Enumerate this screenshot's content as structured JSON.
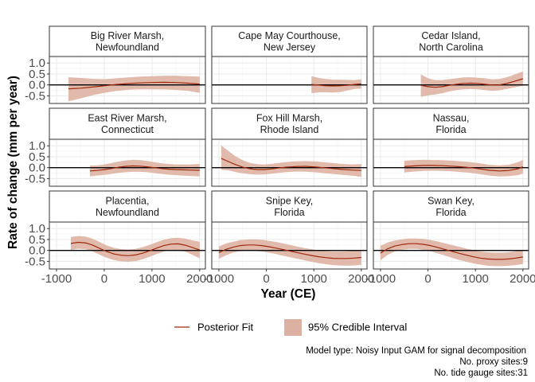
{
  "chart_data": {
    "type": "line",
    "xlabel": "Year (CE)",
    "ylabel": "Rate of change (mm per year)",
    "xlim": [
      -1150,
      2120
    ],
    "ylim": [
      -0.85,
      1.3
    ],
    "x_ticks": [
      -1000,
      0,
      1000,
      2000
    ],
    "x_tick_labels": [
      "-1000",
      "0",
      "1000",
      "2000"
    ],
    "y_ticks": [
      1.0,
      0.5,
      0.0,
      -0.5
    ],
    "y_tick_labels": [
      "1.0",
      "0.5",
      "0.0",
      "-0.5"
    ],
    "grid": true,
    "zero_line": true,
    "colors": {
      "fit": "#A0290A",
      "ci": "#DDB1A1",
      "strip_bg": "#FFFFFF",
      "border": "#333333",
      "grid_major": "#EBEBEB",
      "grid_minor": "#F5F5F5"
    },
    "legend": {
      "position": "bottom",
      "fit_label": "Posterior Fit",
      "ci_label": "95% Credible Interval"
    },
    "caption": [
      "Model type: Noisy Input GAM for signal decomposition",
      "No. proxy sites:9",
      "No. tide gauge sites:31"
    ],
    "panels": [
      {
        "title": [
          "Big River Marsh,",
          "Newfoundland"
        ],
        "x": [
          -750,
          -500,
          -250,
          0,
          250,
          500,
          750,
          1000,
          1250,
          1500,
          1750,
          2000
        ],
        "fit": [
          -0.18,
          -0.15,
          -0.1,
          -0.04,
          0.02,
          0.06,
          0.09,
          0.11,
          0.12,
          0.11,
          0.08,
          0.04
        ],
        "lower": [
          -0.75,
          -0.62,
          -0.48,
          -0.36,
          -0.28,
          -0.22,
          -0.2,
          -0.2,
          -0.21,
          -0.23,
          -0.27,
          -0.36
        ],
        "upper": [
          0.35,
          0.32,
          0.28,
          0.26,
          0.3,
          0.34,
          0.38,
          0.4,
          0.42,
          0.42,
          0.4,
          0.38
        ]
      },
      {
        "title": [
          "Cape May Courthouse,",
          "New Jersey"
        ],
        "x": [
          950,
          1100,
          1250,
          1400,
          1550,
          1700,
          1850,
          2000
        ],
        "fit": [
          0.02,
          -0.01,
          -0.04,
          -0.05,
          -0.04,
          -0.02,
          0.02,
          0.05
        ],
        "lower": [
          -0.38,
          -0.34,
          -0.34,
          -0.35,
          -0.33,
          -0.26,
          -0.19,
          -0.17
        ],
        "upper": [
          0.4,
          0.32,
          0.27,
          0.24,
          0.24,
          0.23,
          0.22,
          0.25
        ]
      },
      {
        "title": [
          "Cedar Island,",
          "North Carolina"
        ],
        "x": [
          -150,
          0,
          150,
          300,
          450,
          600,
          750,
          900,
          1050,
          1200,
          1350,
          1500,
          1650,
          1800,
          2000
        ],
        "fit": [
          -0.02,
          -0.08,
          -0.11,
          -0.08,
          -0.02,
          0.03,
          0.07,
          0.08,
          0.07,
          0.03,
          -0.01,
          0.0,
          0.06,
          0.15,
          0.28
        ],
        "lower": [
          -0.55,
          -0.48,
          -0.44,
          -0.38,
          -0.3,
          -0.24,
          -0.2,
          -0.19,
          -0.2,
          -0.24,
          -0.27,
          -0.25,
          -0.19,
          -0.12,
          -0.04
        ],
        "upper": [
          0.48,
          0.3,
          0.22,
          0.22,
          0.26,
          0.3,
          0.34,
          0.35,
          0.33,
          0.3,
          0.25,
          0.27,
          0.34,
          0.46,
          0.62
        ]
      },
      {
        "title": [
          "East River Marsh,",
          "Connecticut"
        ],
        "x": [
          -300,
          -150,
          0,
          150,
          300,
          450,
          600,
          750,
          900,
          1050,
          1200,
          1350,
          1500,
          1650,
          1800,
          2000
        ],
        "fit": [
          -0.15,
          -0.13,
          -0.09,
          -0.04,
          0.02,
          0.06,
          0.08,
          0.07,
          0.04,
          0.0,
          -0.04,
          -0.07,
          -0.09,
          -0.1,
          -0.11,
          -0.12
        ],
        "lower": [
          -0.4,
          -0.36,
          -0.33,
          -0.29,
          -0.24,
          -0.21,
          -0.19,
          -0.19,
          -0.21,
          -0.25,
          -0.29,
          -0.32,
          -0.34,
          -0.36,
          -0.38,
          -0.4
        ],
        "upper": [
          0.1,
          0.1,
          0.15,
          0.21,
          0.28,
          0.33,
          0.36,
          0.35,
          0.31,
          0.25,
          0.2,
          0.17,
          0.15,
          0.15,
          0.15,
          0.17
        ]
      },
      {
        "title": [
          "Fox Hill Marsh,",
          "Rhode Island"
        ],
        "x": [
          -950,
          -800,
          -650,
          -500,
          -350,
          -200,
          -50,
          100,
          250,
          400,
          600,
          800,
          1000,
          1200,
          1400,
          1600,
          1800,
          2000
        ],
        "fit": [
          0.42,
          0.28,
          0.14,
          0.03,
          -0.05,
          -0.09,
          -0.09,
          -0.06,
          -0.02,
          0.02,
          0.05,
          0.06,
          0.04,
          0.0,
          -0.04,
          -0.08,
          -0.11,
          -0.13
        ],
        "lower": [
          -0.1,
          -0.12,
          -0.2,
          -0.26,
          -0.3,
          -0.32,
          -0.31,
          -0.28,
          -0.24,
          -0.21,
          -0.18,
          -0.18,
          -0.21,
          -0.25,
          -0.29,
          -0.33,
          -0.37,
          -0.42
        ],
        "upper": [
          1.02,
          0.76,
          0.52,
          0.34,
          0.22,
          0.16,
          0.14,
          0.17,
          0.21,
          0.25,
          0.29,
          0.3,
          0.29,
          0.25,
          0.21,
          0.17,
          0.15,
          0.16
        ]
      },
      {
        "title": [
          "Nassau,",
          "Florida"
        ],
        "x": [
          -500,
          -300,
          -100,
          100,
          300,
          500,
          700,
          900,
          1100,
          1300,
          1500,
          1700,
          1900,
          2000
        ],
        "fit": [
          0.05,
          0.08,
          0.1,
          0.1,
          0.09,
          0.07,
          0.04,
          0.0,
          -0.06,
          -0.12,
          -0.15,
          -0.13,
          -0.05,
          0.04
        ],
        "lower": [
          -0.22,
          -0.18,
          -0.15,
          -0.14,
          -0.15,
          -0.17,
          -0.2,
          -0.24,
          -0.3,
          -0.36,
          -0.4,
          -0.39,
          -0.34,
          -0.27
        ],
        "upper": [
          0.32,
          0.34,
          0.36,
          0.35,
          0.34,
          0.32,
          0.29,
          0.25,
          0.2,
          0.13,
          0.1,
          0.13,
          0.25,
          0.36
        ]
      },
      {
        "title": [
          "Placentia,",
          "Newfoundland"
        ],
        "x": [
          -700,
          -550,
          -400,
          -250,
          -100,
          50,
          200,
          350,
          500,
          650,
          800,
          950,
          1100,
          1250,
          1400,
          1550,
          1700,
          1850,
          2000
        ],
        "fit": [
          0.32,
          0.37,
          0.35,
          0.25,
          0.1,
          -0.05,
          -0.16,
          -0.22,
          -0.24,
          -0.21,
          -0.13,
          -0.02,
          0.11,
          0.22,
          0.29,
          0.3,
          0.24,
          0.13,
          0.02
        ],
        "lower": [
          0.02,
          0.08,
          0.06,
          -0.04,
          -0.19,
          -0.33,
          -0.44,
          -0.5,
          -0.52,
          -0.49,
          -0.41,
          -0.29,
          -0.16,
          -0.05,
          0.02,
          0.02,
          -0.06,
          -0.2,
          -0.36
        ],
        "upper": [
          0.62,
          0.66,
          0.64,
          0.54,
          0.39,
          0.23,
          0.12,
          0.06,
          0.04,
          0.07,
          0.15,
          0.25,
          0.38,
          0.49,
          0.56,
          0.58,
          0.54,
          0.46,
          0.4
        ]
      },
      {
        "title": [
          "Snipe Key,",
          "Florida"
        ],
        "x": [
          -1000,
          -850,
          -700,
          -550,
          -400,
          -250,
          -100,
          50,
          200,
          350,
          500,
          650,
          800,
          950,
          1100,
          1250,
          1400,
          1550,
          1700,
          1850,
          2000
        ],
        "fit": [
          -0.1,
          0.05,
          0.15,
          0.22,
          0.25,
          0.25,
          0.22,
          0.17,
          0.11,
          0.04,
          -0.03,
          -0.1,
          -0.17,
          -0.23,
          -0.29,
          -0.33,
          -0.36,
          -0.37,
          -0.37,
          -0.35,
          -0.32
        ],
        "lower": [
          -0.38,
          -0.22,
          -0.1,
          -0.03,
          0.0,
          -0.01,
          -0.05,
          -0.1,
          -0.17,
          -0.24,
          -0.31,
          -0.38,
          -0.45,
          -0.52,
          -0.58,
          -0.63,
          -0.67,
          -0.69,
          -0.7,
          -0.69,
          -0.66
        ],
        "upper": [
          0.18,
          0.32,
          0.4,
          0.47,
          0.5,
          0.51,
          0.49,
          0.44,
          0.39,
          0.32,
          0.25,
          0.18,
          0.11,
          0.06,
          0.0,
          -0.03,
          -0.05,
          -0.05,
          -0.04,
          -0.01,
          0.02
        ]
      },
      {
        "title": [
          "Swan Key,",
          "Florida"
        ],
        "x": [
          -1000,
          -850,
          -700,
          -550,
          -400,
          -250,
          -100,
          50,
          200,
          350,
          500,
          650,
          800,
          950,
          1100,
          1250,
          1400,
          1550,
          1700,
          1850,
          2000
        ],
        "fit": [
          -0.12,
          0.08,
          0.2,
          0.27,
          0.31,
          0.31,
          0.28,
          0.22,
          0.14,
          0.05,
          -0.04,
          -0.13,
          -0.21,
          -0.29,
          -0.35,
          -0.39,
          -0.41,
          -0.41,
          -0.39,
          -0.35,
          -0.3
        ],
        "lower": [
          -0.45,
          -0.2,
          -0.05,
          0.03,
          0.07,
          0.07,
          0.03,
          -0.04,
          -0.13,
          -0.23,
          -0.33,
          -0.43,
          -0.51,
          -0.59,
          -0.65,
          -0.7,
          -0.72,
          -0.72,
          -0.7,
          -0.67,
          -0.62
        ],
        "upper": [
          0.21,
          0.36,
          0.45,
          0.51,
          0.55,
          0.55,
          0.53,
          0.48,
          0.41,
          0.33,
          0.25,
          0.17,
          0.09,
          0.01,
          -0.05,
          -0.08,
          -0.1,
          -0.1,
          -0.08,
          -0.03,
          0.02
        ]
      }
    ]
  }
}
